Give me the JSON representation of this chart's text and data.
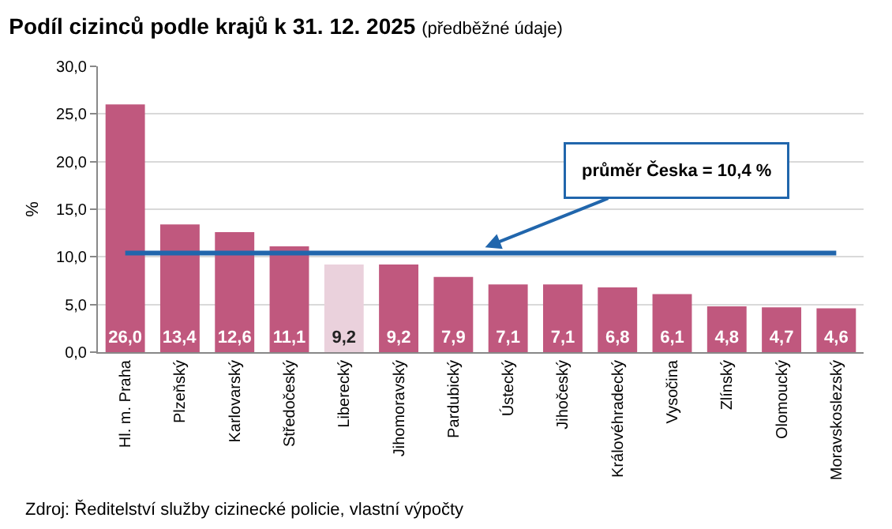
{
  "chart_data": {
    "type": "bar",
    "title": "Podíl cizinců podle krajů k 31. 12. 2025",
    "subtitle": "(předběžné údaje)",
    "ylabel": "%",
    "categories": [
      "Hl. m. Praha",
      "Plzeňský",
      "Karlovarský",
      "Středočeský",
      "Liberecký",
      "Jihomoravský",
      "Pardubický",
      "Ústecký",
      "Jihočeský",
      "Královéhradecký",
      "Vysočina",
      "Zlínský",
      "Olomoucký",
      "Moravskoslezský"
    ],
    "values": [
      26.0,
      13.4,
      12.6,
      11.1,
      9.2,
      9.2,
      7.9,
      7.1,
      7.1,
      6.8,
      6.1,
      4.8,
      4.7,
      4.6
    ],
    "colors": [
      "#c0587e",
      "#c0587e",
      "#c0587e",
      "#c0587e",
      "#ead1dc",
      "#c0587e",
      "#c0587e",
      "#c0587e",
      "#c0587e",
      "#c0587e",
      "#c0587e",
      "#c0587e",
      "#c0587e",
      "#c0587e"
    ],
    "value_labels": [
      "26,0",
      "13,4",
      "12,6",
      "11,1",
      "9,2",
      "9,2",
      "7,9",
      "7,1",
      "7,1",
      "6,8",
      "6,1",
      "4,8",
      "4,7",
      "4,6"
    ],
    "ylim": [
      0,
      30
    ],
    "yticks": [
      {
        "value": 0,
        "label": "0,0"
      },
      {
        "value": 5,
        "label": "5,0"
      },
      {
        "value": 10,
        "label": "10,0"
      },
      {
        "value": 15,
        "label": "15,0"
      },
      {
        "value": 20,
        "label": "20,0"
      },
      {
        "value": 25,
        "label": "25,0"
      },
      {
        "value": 30,
        "label": "30,0"
      }
    ],
    "grid": "y",
    "ref_lines": [
      {
        "axis": "y",
        "value": 10.4,
        "label": "průměr Česka = 10,4 %",
        "color": "#2166ac"
      }
    ],
    "annotations": [
      "Zdroj: Ředitelství služby cizinecké policie, vlastní výpočty"
    ]
  }
}
